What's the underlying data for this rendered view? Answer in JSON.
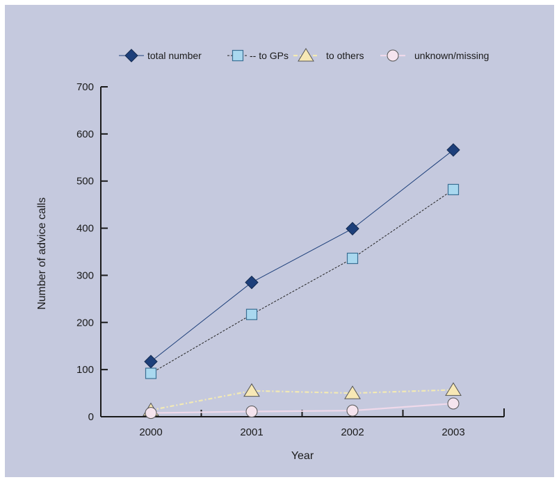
{
  "chart_data": {
    "type": "line",
    "title": "",
    "xlabel": "Year",
    "ylabel": "Number of advice calls",
    "categories": [
      "2000",
      "2001",
      "2002",
      "2003"
    ],
    "ylim": [
      0,
      700
    ],
    "yticks": [
      "0",
      "100",
      "200",
      "300",
      "400",
      "500",
      "600",
      "700"
    ],
    "grid": false,
    "legend_position": "top",
    "background_color": "#c5c9de",
    "series": [
      {
        "name": "total number",
        "values": [
          117,
          285,
          399,
          566
        ],
        "color": "#1d3f7a",
        "marker": "diamond",
        "line_style": "solid",
        "marker_fill": "#1d3f7a"
      },
      {
        "name": "to GPs",
        "values": [
          92,
          217,
          336,
          482
        ],
        "color": "#222222",
        "marker": "square",
        "line_style": "dashed",
        "marker_fill": "#a9d8ef"
      },
      {
        "name": "to others",
        "values": [
          14,
          55,
          50,
          57
        ],
        "color": "#f3eab4",
        "marker": "triangle",
        "line_style": "dashdot",
        "marker_fill": "#f7e8b5"
      },
      {
        "name": "unknown/missing",
        "values": [
          8,
          11,
          13,
          28
        ],
        "color": "#efd9ea",
        "marker": "circle",
        "line_style": "solid",
        "marker_fill": "#f5e4ee"
      }
    ]
  }
}
